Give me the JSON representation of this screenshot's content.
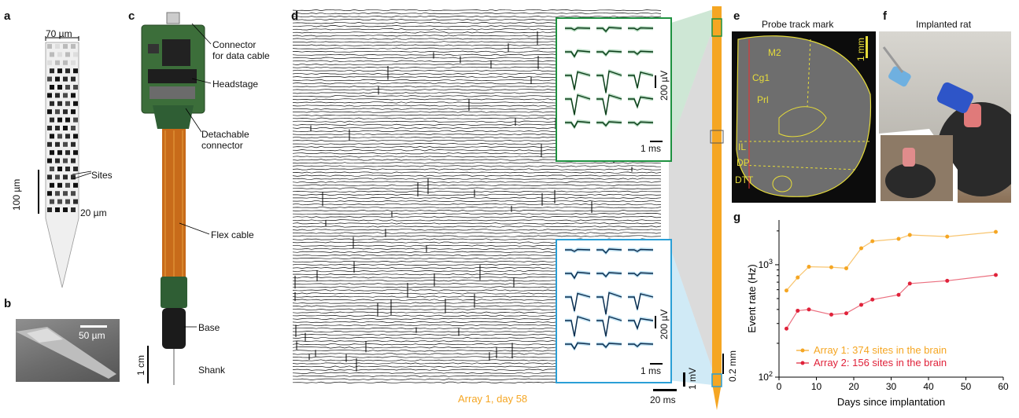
{
  "panels": {
    "a": {
      "letter": "a",
      "width_label": "70 µm",
      "sites_label": "Sites",
      "scale_100": "100 µm",
      "scale_20": "20 µm"
    },
    "b": {
      "letter": "b",
      "scale": "50 µm"
    },
    "c": {
      "letter": "c",
      "connector": "Connector",
      "connector2": "for data cable",
      "headstage": "Headstage",
      "detachable": "Detachable",
      "detachable2": "connector",
      "flex": "Flex cable",
      "base": "Base",
      "shank": "Shank",
      "scale": "1 cm"
    },
    "d": {
      "letter": "d",
      "caption": "Array 1, day 58",
      "uv1": "200 µV",
      "ms1": "1 ms",
      "uv2": "200 µV",
      "ms2": "1 ms",
      "mv": "1 mV",
      "ms20": "20 ms",
      "mm": "0.2 mm"
    },
    "e": {
      "letter": "e",
      "title": "Probe track mark",
      "scale": "1 mm",
      "regions": [
        "M2",
        "Cg1",
        "Prl",
        "IL",
        "DP",
        "DTT"
      ]
    },
    "f": {
      "letter": "f",
      "title": "Implanted rat"
    },
    "g": {
      "letter": "g"
    }
  },
  "colors": {
    "array1": "#f5a623",
    "array2": "#e0223a",
    "green": "#1e9140",
    "blue": "#2a9fd6",
    "orange": "#f5a623"
  },
  "chart_data": {
    "type": "line",
    "xlabel": "Days since implantation",
    "ylabel": "Event rate (Hz)",
    "yscale": "log",
    "xlim": [
      0,
      60
    ],
    "ylim": [
      100,
      2500
    ],
    "xticks": [
      "0",
      "10",
      "20",
      "30",
      "40",
      "50",
      "60"
    ],
    "yticks": [
      "10^2",
      "10^3"
    ],
    "legend_position": "bottom",
    "series": [
      {
        "name": "Array 1: 374 sites in the brain",
        "x": [
          2,
          5,
          8,
          14,
          18,
          22,
          25,
          32,
          35,
          45,
          58
        ],
        "y": [
          590,
          770,
          960,
          950,
          930,
          1400,
          1620,
          1700,
          1840,
          1780,
          1960
        ]
      },
      {
        "name": "Array 2: 156 sites in the brain",
        "x": [
          2,
          5,
          8,
          14,
          18,
          22,
          25,
          32,
          35,
          45,
          58
        ],
        "y": [
          270,
          390,
          400,
          360,
          370,
          440,
          490,
          540,
          680,
          720,
          810
        ]
      }
    ]
  }
}
